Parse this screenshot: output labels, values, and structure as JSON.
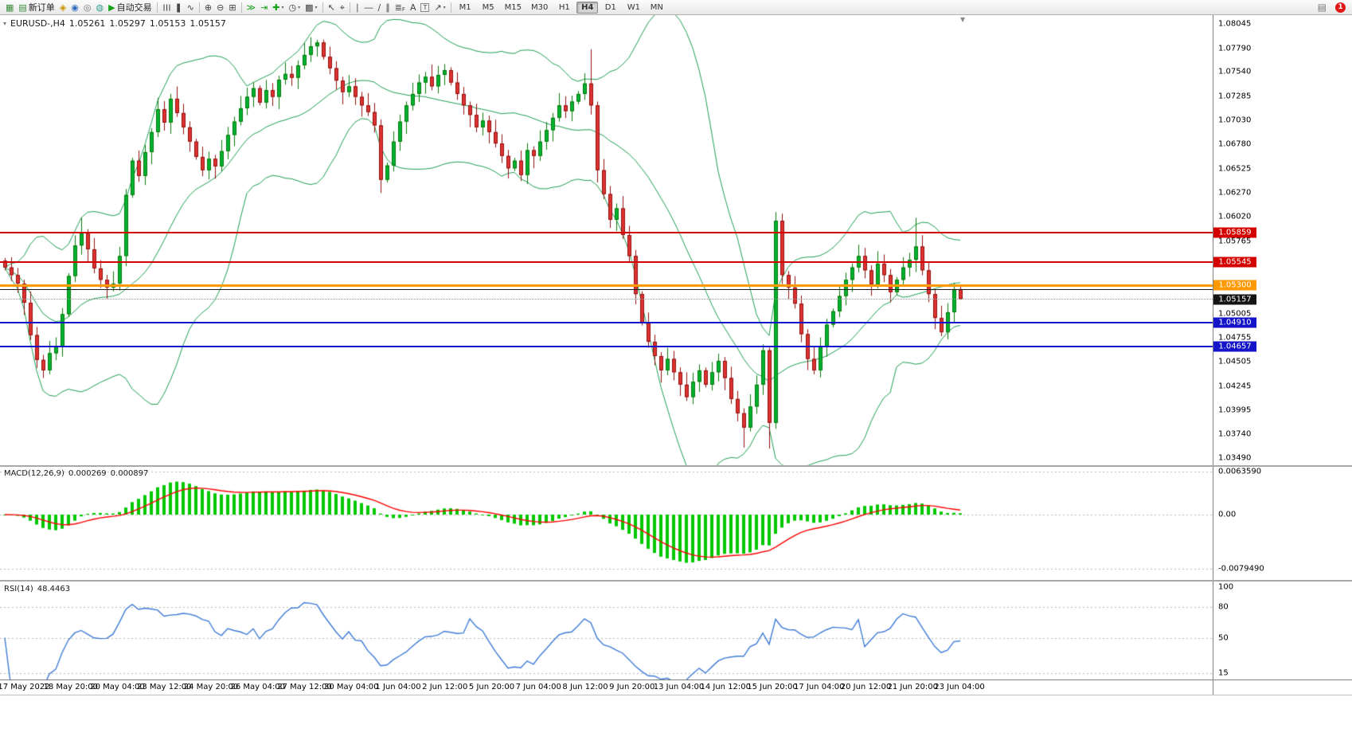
{
  "toolbar": {
    "items": [
      {
        "name": "new-chart-icon",
        "glyph": "▦",
        "color": "#3C8D3C"
      },
      {
        "name": "new-order-button",
        "glyph": "▤",
        "color": "#3C8D3C",
        "label": "新订单"
      },
      {
        "name": "profiles-icon",
        "glyph": "◈",
        "color": "#C89600"
      },
      {
        "name": "market-watch-icon",
        "glyph": "◉",
        "color": "#2F6DC0"
      },
      {
        "name": "data-window-icon",
        "glyph": "◎",
        "color": "#777777"
      },
      {
        "name": "strategy-tester-icon",
        "glyph": "◍",
        "color": "#2F9D8F"
      },
      {
        "name": "autotrading-button",
        "glyph": "▶",
        "color": "#18A018",
        "label": "自动交易"
      },
      {
        "type": "sep"
      },
      {
        "name": "bar-chart-icon",
        "glyph": "☰",
        "rot": true,
        "color": "#444444"
      },
      {
        "name": "candlestick-icon",
        "glyph": "❚",
        "color": "#444444"
      },
      {
        "name": "line-chart-icon",
        "glyph": "∿",
        "color": "#444444"
      },
      {
        "type": "sep"
      },
      {
        "name": "zoom-in-icon",
        "glyph": "⊕",
        "color": "#444444"
      },
      {
        "name": "zoom-out-icon",
        "glyph": "⊖",
        "color": "#444444"
      },
      {
        "name": "tile-windows-icon",
        "glyph": "⊞",
        "color": "#444444"
      },
      {
        "type": "sep"
      },
      {
        "name": "auto-scroll-icon",
        "glyph": "≫",
        "color": "#18A018"
      },
      {
        "name": "chart-shift-icon",
        "glyph": "⇥",
        "color": "#18A018"
      },
      {
        "name": "indicators-button",
        "glyph": "✚",
        "color": "#18A018",
        "caret": "▾"
      },
      {
        "name": "periods-button",
        "glyph": "◷",
        "color": "#444444",
        "caret": "▾"
      },
      {
        "name": "templates-button",
        "glyph": "▩",
        "color": "#444444",
        "caret": "▾"
      },
      {
        "type": "sep"
      },
      {
        "name": "cursor-icon",
        "glyph": "↖",
        "color": "#444444"
      },
      {
        "name": "crosshair-icon",
        "glyph": "⌖",
        "color": "#444444"
      },
      {
        "type": "sep"
      },
      {
        "name": "vertical-line-icon",
        "glyph": "∣",
        "color": "#444444"
      },
      {
        "name": "horizontal-line-icon",
        "glyph": "―",
        "color": "#444444"
      },
      {
        "name": "trendline-icon",
        "glyph": "∕",
        "color": "#444444"
      },
      {
        "name": "channel-icon",
        "glyph": "∥",
        "color": "#444444"
      },
      {
        "name": "fibonacci-icon",
        "glyph": "≣",
        "sub": "F",
        "color": "#444444"
      },
      {
        "name": "text-icon",
        "glyph": "A",
        "color": "#444444"
      },
      {
        "name": "text-label-icon",
        "glyph": "T",
        "boxed": true,
        "color": "#444444"
      },
      {
        "name": "arrows-button",
        "glyph": "↗",
        "color": "#444444",
        "caret": "▾"
      },
      {
        "type": "sep"
      }
    ],
    "timeframes": [
      {
        "label": "M1"
      },
      {
        "label": "M5"
      },
      {
        "label": "M15"
      },
      {
        "label": "M30"
      },
      {
        "label": "H1"
      },
      {
        "label": "H4",
        "active": true
      },
      {
        "label": "D1"
      },
      {
        "label": "W1"
      },
      {
        "label": "MN"
      }
    ],
    "right": {
      "window_icon": "▤",
      "notification_count": "1"
    }
  },
  "chart": {
    "header": {
      "icon": "▾",
      "symbol_period": "EURUSD-,H4",
      "open": "1.05261",
      "high": "1.05297",
      "low": "1.05153",
      "close": "1.05157"
    },
    "shift_marker": "▼"
  },
  "price_axis": {
    "labels": [
      {
        "text": "1.08045",
        "v": 1.08045
      },
      {
        "text": "1.07790",
        "v": 1.0779
      },
      {
        "text": "1.07540",
        "v": 1.0754
      },
      {
        "text": "1.07285",
        "v": 1.07285
      },
      {
        "text": "1.07030",
        "v": 1.0703
      },
      {
        "text": "1.06780",
        "v": 1.0678
      },
      {
        "text": "1.06525",
        "v": 1.06525
      },
      {
        "text": "1.06270",
        "v": 1.0627
      },
      {
        "text": "1.06020",
        "v": 1.0602
      },
      {
        "text": "1.05765",
        "v": 1.05765
      },
      {
        "text": "1.05005",
        "v": 1.05005
      },
      {
        "text": "1.04755",
        "v": 1.04755
      },
      {
        "text": "1.04505",
        "v": 1.04505
      },
      {
        "text": "1.04245",
        "v": 1.04245
      },
      {
        "text": "1.03995",
        "v": 1.03995
      },
      {
        "text": "1.03740",
        "v": 1.0374
      },
      {
        "text": "1.03490",
        "v": 1.0349
      }
    ],
    "badges": [
      {
        "text": "1.05859",
        "v": 1.05859,
        "color": "#D40000"
      },
      {
        "text": "1.05545",
        "v": 1.05545,
        "color": "#D40000"
      },
      {
        "text": "1.05300",
        "v": 1.053,
        "color": "#FF9900"
      },
      {
        "text": "1.05157",
        "v": 1.05157,
        "color": "#141414"
      },
      {
        "text": "1.04910",
        "v": 1.0491,
        "color": "#1414C8"
      },
      {
        "text": "1.04657",
        "v": 1.04657,
        "color": "#1414C8"
      }
    ]
  },
  "macd": {
    "name": "MACD(12,26,9)",
    "value_main": "0.000269",
    "value_signal": "0.000897",
    "scale": [
      {
        "text": "0.0063590",
        "v": 0.006359
      },
      {
        "text": "0.00",
        "v": 0
      },
      {
        "text": "-0.0079490",
        "v": -0.007949
      }
    ]
  },
  "rsi": {
    "name": "RSI(14)",
    "value": "48.4463",
    "scale": [
      {
        "text": "100",
        "v": 100
      },
      {
        "text": "80",
        "v": 80
      },
      {
        "text": "50",
        "v": 50
      },
      {
        "text": "15",
        "v": 15
      }
    ]
  },
  "time_axis": {
    "labels": [
      "17 May 2022",
      "18 May 20:00",
      "20 May 04:00",
      "23 May 12:00",
      "24 May 20:00",
      "26 May 04:00",
      "27 May 12:00",
      "30 May 04:00",
      "1 Jun 04:00",
      "2 Jun 12:00",
      "5 Jun 20:00",
      "7 Jun 04:00",
      "8 Jun 12:00",
      "9 Jun 20:00",
      "13 Jun 04:00",
      "14 Jun 12:00",
      "15 Jun 20:00",
      "17 Jun 04:00",
      "20 Jun 12:00",
      "21 Jun 20:00",
      "23 Jun 04:00"
    ]
  },
  "chart_data": {
    "type": "candlestick",
    "symbol": "EURUSD-",
    "timeframe": "H4",
    "title": "EURUSD-,H4",
    "ohlc_current": {
      "open": 1.05261,
      "high": 1.05297,
      "low": 1.05153,
      "close": 1.05157
    },
    "price_axis_range": [
      1.0349,
      1.08045
    ],
    "y_tick_labels": [
      "1.08045",
      "1.07790",
      "1.07540",
      "1.07285",
      "1.07030",
      "1.06780",
      "1.06525",
      "1.06270",
      "1.06020",
      "1.05765",
      "1.05005",
      "1.04755",
      "1.04505",
      "1.04245",
      "1.03995",
      "1.03740",
      "1.03490"
    ],
    "x_tick_labels": [
      "17 May 2022",
      "18 May 20:00",
      "20 May 04:00",
      "23 May 12:00",
      "24 May 20:00",
      "26 May 04:00",
      "27 May 12:00",
      "30 May 04:00",
      "1 Jun 04:00",
      "2 Jun 12:00",
      "5 Jun 20:00",
      "7 Jun 04:00",
      "8 Jun 12:00",
      "9 Jun 20:00",
      "13 Jun 04:00",
      "14 Jun 12:00",
      "15 Jun 20:00",
      "17 Jun 04:00",
      "20 Jun 12:00",
      "21 Jun 20:00",
      "23 Jun 04:00"
    ],
    "first_open": 1.0556,
    "closes": [
      1.0549,
      1.0541,
      1.0532,
      1.0512,
      1.0478,
      1.0452,
      1.0441,
      1.0459,
      1.0466,
      1.05,
      1.054,
      1.0572,
      1.0585,
      1.0568,
      1.0548,
      1.0536,
      1.0528,
      1.0532,
      1.0561,
      1.0625,
      1.0661,
      1.0645,
      1.067,
      1.0691,
      1.0715,
      1.0701,
      1.0726,
      1.0711,
      1.0696,
      1.0681,
      1.0665,
      1.0651,
      1.0663,
      1.0655,
      1.0671,
      1.0688,
      1.0702,
      1.0716,
      1.0728,
      1.0737,
      1.0722,
      1.0735,
      1.0728,
      1.0746,
      1.0752,
      1.0748,
      1.0761,
      1.0772,
      1.0781,
      1.0785,
      1.077,
      1.0758,
      1.0745,
      1.0733,
      1.0739,
      1.0728,
      1.0719,
      1.0712,
      1.0698,
      1.0641,
      1.0656,
      1.0681,
      1.0702,
      1.0719,
      1.0731,
      1.0743,
      1.0749,
      1.0739,
      1.0751,
      1.0756,
      1.0743,
      1.0731,
      1.0719,
      1.0709,
      1.0696,
      1.0703,
      1.0691,
      1.0679,
      1.0666,
      1.0653,
      1.0661,
      1.0646,
      1.0672,
      1.0666,
      1.0681,
      1.0693,
      1.0706,
      1.0719,
      1.0713,
      1.0723,
      1.0731,
      1.0742,
      1.0719,
      1.0651,
      1.0626,
      1.0599,
      1.0611,
      1.0583,
      1.0561,
      1.0521,
      1.0491,
      1.0471,
      1.0456,
      1.0441,
      1.0453,
      1.0439,
      1.0426,
      1.0413,
      1.0429,
      1.0441,
      1.0426,
      1.0439,
      1.0451,
      1.0433,
      1.0411,
      1.0396,
      1.0381,
      1.0403,
      1.0426,
      1.0462,
      1.0386,
      1.0598,
      1.0541,
      1.0528,
      1.0511,
      1.0479,
      1.0453,
      1.0441,
      1.0466,
      1.0489,
      1.0503,
      1.0519,
      1.0536,
      1.0549,
      1.0561,
      1.0546,
      1.0531,
      1.0553,
      1.0541,
      1.0523,
      1.0536,
      1.0549,
      1.0557,
      1.0571,
      1.0546,
      1.0521,
      1.0496,
      1.0481,
      1.0502,
      1.0526,
      1.05157
    ],
    "wick_overrides": {
      "6": {
        "low": 1.0433
      },
      "12": {
        "high": 1.0601
      },
      "49": {
        "high": 1.0788
      },
      "59": {
        "low": 1.0627
      },
      "92": {
        "high": 1.0778
      },
      "116": {
        "low": 1.036
      },
      "120": {
        "low": 1.0359
      },
      "121": {
        "high": 1.0607
      },
      "143": {
        "high": 1.0601
      },
      "150": {
        "high": 1.05297,
        "low": 1.05153
      }
    },
    "horizontal_levels": [
      {
        "v": 1.05859,
        "color": "#D40000",
        "h": 2,
        "name": "resistance-line-1"
      },
      {
        "v": 1.05545,
        "color": "#D40000",
        "h": 2,
        "name": "resistance-line-2"
      },
      {
        "v": 1.053,
        "color": "#FF9900",
        "h": 3,
        "name": "pivot-line"
      },
      {
        "v": 1.0526,
        "color": "#1A1A1A",
        "h": 1,
        "name": "level-line"
      },
      {
        "v": 1.05157,
        "color": "#909090",
        "h": 1,
        "style": "dotted",
        "name": "current-price-line"
      },
      {
        "v": 1.0491,
        "color": "#1414CC",
        "h": 2,
        "name": "support-line-1"
      },
      {
        "v": 1.04657,
        "color": "#1414CC",
        "h": 2,
        "name": "support-line-2"
      }
    ],
    "indicators": [
      {
        "type": "bollinger",
        "period": 20,
        "deviation": 2,
        "color": "#1E9E50"
      },
      {
        "type": "macd",
        "fast": 12,
        "slow": 26,
        "signal": 9,
        "current_main": 0.000269,
        "current_signal": 0.000897,
        "scale_max": 0.006359,
        "scale_min": -0.007949,
        "histogram_color": "#00C800",
        "signal_color": "#FF0000"
      },
      {
        "type": "rsi",
        "period": 14,
        "current": 48.4463,
        "levels": [
          80,
          50,
          15
        ],
        "color": "#3E7BD6"
      }
    ],
    "colors": {
      "bull": "#00B232",
      "bear": "#E03131",
      "background": "#FFFFFF",
      "foreground": "#000000"
    }
  }
}
